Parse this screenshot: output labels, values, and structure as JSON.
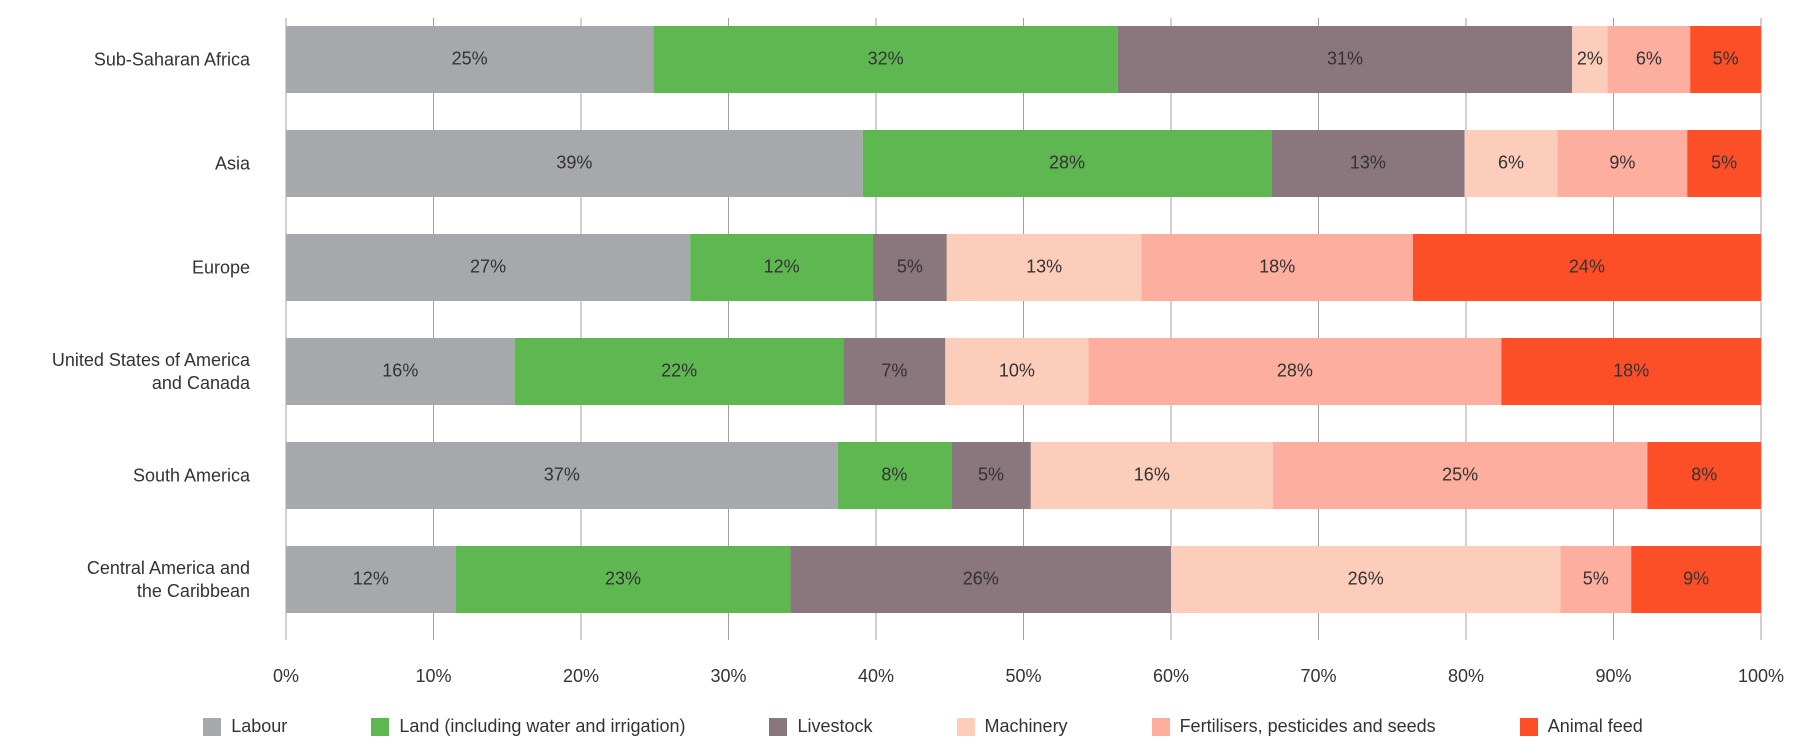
{
  "chart_data": {
    "type": "stacked-bar-horizontal",
    "categories": [
      "Sub-Saharan Africa",
      "Asia",
      "Europe",
      "United States of America\nand Canada",
      "South America",
      "Central America and\nthe Caribbean"
    ],
    "series": [
      {
        "name": "Labour",
        "color": "#a7a8ab",
        "values": [
          24.9,
          39.1,
          27.4,
          15.5,
          37.4,
          11.5
        ],
        "value_labels": [
          "25%",
          "39%",
          "27%",
          "16%",
          "37%",
          "12%"
        ]
      },
      {
        "name": "Land (including water and irrigation)",
        "color": "#5fb752",
        "values": [
          31.5,
          27.7,
          12.4,
          22.3,
          7.7,
          22.7
        ],
        "value_labels": [
          "32%",
          "28%",
          "12%",
          "22%",
          "8%",
          "23%"
        ]
      },
      {
        "name": "Livestock",
        "color": "#8a767d",
        "values": [
          30.8,
          13.1,
          5.0,
          6.9,
          5.4,
          25.8
        ],
        "value_labels": [
          "31%",
          "13%",
          "5%",
          "7%",
          "5%",
          "26%"
        ]
      },
      {
        "name": "Machinery",
        "color": "#fdcdbc",
        "values": [
          2.4,
          6.3,
          13.2,
          9.7,
          16.4,
          26.4
        ],
        "value_labels": [
          "2%",
          "6%",
          "13%",
          "10%",
          "16%",
          "26%"
        ]
      },
      {
        "name": "Fertilisers, pesticides and seeds",
        "color": "#fdae9e",
        "values": [
          5.6,
          8.8,
          18.4,
          28.0,
          25.4,
          4.8
        ],
        "value_labels": [
          "6%",
          "9%",
          "18%",
          "28%",
          "25%",
          "5%"
        ]
      },
      {
        "name": "Animal feed",
        "color": "#fc4f27",
        "values": [
          4.8,
          5.0,
          23.6,
          17.6,
          7.7,
          8.8
        ],
        "value_labels": [
          "5%",
          "5%",
          "24%",
          "18%",
          "8%",
          "9%"
        ]
      }
    ],
    "xlim": [
      0,
      100
    ],
    "xticks": [
      {
        "value": 0,
        "label": "0%"
      },
      {
        "value": 10,
        "label": "10%"
      },
      {
        "value": 20,
        "label": "20%"
      },
      {
        "value": 30,
        "label": "30%"
      },
      {
        "value": 40,
        "label": "40%"
      },
      {
        "value": 50,
        "label": "50%"
      },
      {
        "value": 60,
        "label": "60%"
      },
      {
        "value": 70,
        "label": "70%"
      },
      {
        "value": 80,
        "label": "80%"
      },
      {
        "value": 90,
        "label": "90%"
      },
      {
        "value": 100,
        "label": "100%"
      }
    ],
    "grid": true
  }
}
